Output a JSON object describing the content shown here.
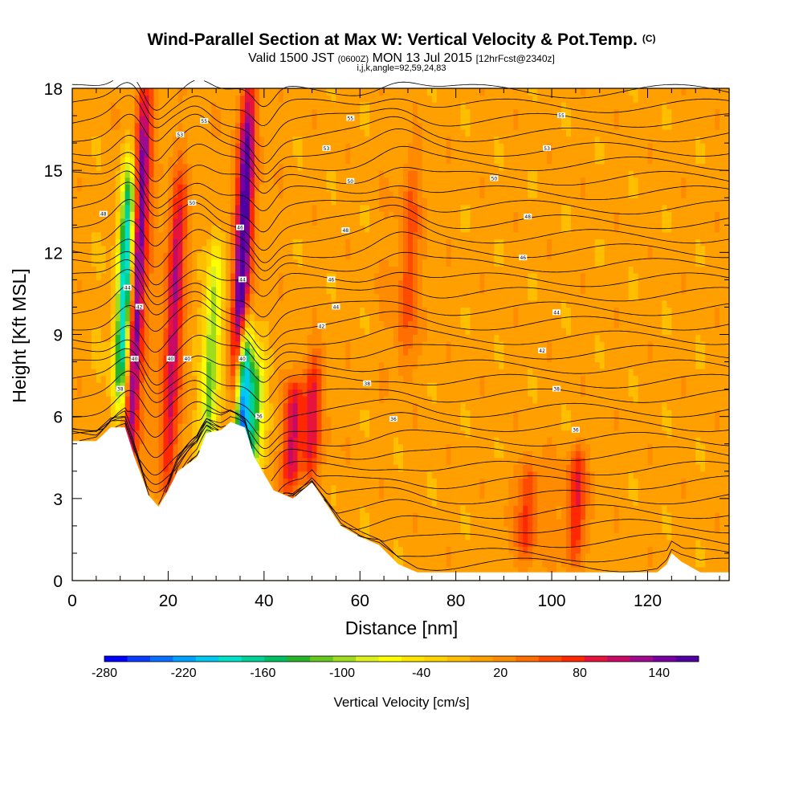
{
  "chart_data": {
    "type": "heatmap",
    "title": "Wind-Parallel Section at Max W: Vertical Velocity & Pot.Temp.",
    "title_units": "(C)",
    "subtitle_main": "Valid 1500 JST",
    "subtitle_utc": "(0600Z)",
    "subtitle_date": "MON 13 Jul 2015",
    "subtitle_fcst": "[12hrFcst@2340z]",
    "subtitle_indices": "i,j,k,angle=92,59,24,83",
    "xlabel": "Distance [nm]",
    "ylabel": "Height [Kft MSL]",
    "xlim": [
      0,
      137
    ],
    "ylim": [
      0,
      18
    ],
    "x_ticks": [
      0,
      20,
      40,
      60,
      80,
      100,
      120
    ],
    "y_ticks": [
      0,
      3,
      6,
      9,
      12,
      15,
      18
    ],
    "colorbar": {
      "label": "Vertical Velocity [cm/s]",
      "range": [
        -280,
        170
      ],
      "tick_values": [
        -280,
        -220,
        -160,
        -100,
        -40,
        20,
        80,
        140
      ],
      "colors": [
        "#0000ff",
        "#0a3cff",
        "#0a6eff",
        "#00a0ff",
        "#00c8f0",
        "#00e1c8",
        "#00d296",
        "#00be64",
        "#28b428",
        "#64c81e",
        "#a0dc1e",
        "#dcf01e",
        "#ffff00",
        "#ffe600",
        "#ffd200",
        "#ffbe00",
        "#ffa000",
        "#ff8c00",
        "#ff6e00",
        "#ff4b00",
        "#ff2800",
        "#e6143c",
        "#c80a64",
        "#a00a8c",
        "#7800a0",
        "#5000a0"
      ]
    },
    "background_value": 5,
    "updrafts": [
      {
        "x": 13.5,
        "y0": 4.0,
        "y1": 18.0,
        "w": 140
      },
      {
        "x": 21,
        "y0": 3.5,
        "y1": 14.5,
        "w": 90
      },
      {
        "x": 35.5,
        "y0": 6.0,
        "y1": 18.0,
        "w": 150
      },
      {
        "x": 46,
        "y0": 3.5,
        "y1": 7.0,
        "w": 80
      },
      {
        "x": 50,
        "y0": 4.0,
        "y1": 8.0,
        "w": 60
      },
      {
        "x": 70,
        "y0": 8.0,
        "y1": 15.0,
        "w": 30
      },
      {
        "x": 105,
        "y0": 1.0,
        "y1": 4.5,
        "w": 60
      },
      {
        "x": 95,
        "y0": 1.0,
        "y1": 4.0,
        "w": 50
      }
    ],
    "downdrafts": [
      {
        "x": 11,
        "y0": 6.5,
        "y1": 15.0,
        "w": -210
      },
      {
        "x": 29,
        "y0": 4.0,
        "y1": 12.0,
        "w": -110
      },
      {
        "x": 35.5,
        "y0": 4.0,
        "y1": 9.0,
        "w": -240
      },
      {
        "x": 38,
        "y0": 4.0,
        "y1": 8.0,
        "w": -120
      }
    ],
    "terrain_height_kft": [
      [
        0,
        5.1
      ],
      [
        5,
        5.1
      ],
      [
        8,
        5.6
      ],
      [
        11,
        5.6
      ],
      [
        13,
        4.5
      ],
      [
        16,
        3.1
      ],
      [
        18,
        2.7
      ],
      [
        20,
        3.3
      ],
      [
        22,
        4.0
      ],
      [
        26,
        4.5
      ],
      [
        28,
        5.4
      ],
      [
        31,
        5.5
      ],
      [
        33,
        5.8
      ],
      [
        36,
        5.6
      ],
      [
        38,
        4.5
      ],
      [
        42,
        3.3
      ],
      [
        46,
        3.0
      ],
      [
        50,
        3.6
      ],
      [
        56,
        2.0
      ],
      [
        60,
        1.6
      ],
      [
        64,
        1.3
      ],
      [
        68,
        0.6
      ],
      [
        72,
        0.3
      ],
      [
        78,
        0.3
      ],
      [
        92,
        0.3
      ],
      [
        110,
        0.3
      ],
      [
        122,
        0.3
      ],
      [
        124,
        0.6
      ],
      [
        125,
        1.0
      ],
      [
        127,
        0.7
      ],
      [
        131,
        0.3
      ],
      [
        137,
        0.3
      ]
    ],
    "isentrope_labels": [
      {
        "text": "55",
        "x": 27.5,
        "y": 16.8
      },
      {
        "text": "55",
        "x": 58,
        "y": 16.9
      },
      {
        "text": "55",
        "x": 102,
        "y": 17.0
      },
      {
        "text": "53",
        "x": 22.5,
        "y": 16.3
      },
      {
        "text": "53",
        "x": 53,
        "y": 15.8
      },
      {
        "text": "53",
        "x": 99,
        "y": 15.8
      },
      {
        "text": "50",
        "x": 25,
        "y": 13.8
      },
      {
        "text": "50",
        "x": 58,
        "y": 14.6
      },
      {
        "text": "50",
        "x": 88,
        "y": 14.7
      },
      {
        "text": "48",
        "x": 6.5,
        "y": 13.4
      },
      {
        "text": "48",
        "x": 57,
        "y": 12.8
      },
      {
        "text": "48",
        "x": 95,
        "y": 13.3
      },
      {
        "text": "46",
        "x": 35,
        "y": 12.9
      },
      {
        "text": "46",
        "x": 54,
        "y": 11.0
      },
      {
        "text": "46",
        "x": 94,
        "y": 11.8
      },
      {
        "text": "44",
        "x": 11.5,
        "y": 10.7
      },
      {
        "text": "44",
        "x": 35.5,
        "y": 11.0
      },
      {
        "text": "44",
        "x": 55,
        "y": 10.0
      },
      {
        "text": "44",
        "x": 101,
        "y": 9.8
      },
      {
        "text": "42",
        "x": 14,
        "y": 10.0
      },
      {
        "text": "42",
        "x": 52,
        "y": 9.3
      },
      {
        "text": "42",
        "x": 98,
        "y": 8.4
      },
      {
        "text": "40",
        "x": 13,
        "y": 8.1
      },
      {
        "text": "40",
        "x": 20.5,
        "y": 8.1
      },
      {
        "text": "40",
        "x": 24,
        "y": 8.1
      },
      {
        "text": "40",
        "x": 35.5,
        "y": 8.1
      },
      {
        "text": "38",
        "x": 10,
        "y": 7.0
      },
      {
        "text": "38",
        "x": 61.5,
        "y": 7.2
      },
      {
        "text": "38",
        "x": 101,
        "y": 7.0
      },
      {
        "text": "36",
        "x": 39,
        "y": 6.0
      },
      {
        "text": "36",
        "x": 67,
        "y": 5.9
      },
      {
        "text": "36",
        "x": 105,
        "y": 5.5
      }
    ]
  }
}
